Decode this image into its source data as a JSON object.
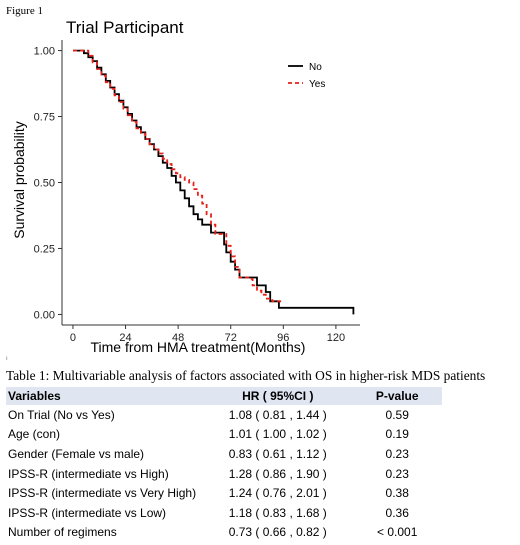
{
  "figure_label": "Figure 1",
  "chart_data": {
    "type": "line",
    "title": "Trial Participant",
    "xlabel": "Time from HMA treatment(Months)",
    "ylabel": "Survival probability",
    "xlim": [
      -5,
      131
    ],
    "ylim": [
      -0.04,
      1.04
    ],
    "x_ticks": [
      "0",
      "24",
      "48",
      "72",
      "96",
      "120"
    ],
    "x_tick_values": [
      0,
      24,
      48,
      72,
      96,
      120
    ],
    "y_ticks": [
      "0.00",
      "0.25",
      "0.50",
      "0.75",
      "1.00"
    ],
    "y_tick_values": [
      0,
      0.25,
      0.5,
      0.75,
      1.0
    ],
    "grid": false,
    "legend_position": "top-right",
    "series": [
      {
        "name": "No",
        "color": "#000000",
        "dash": "solid",
        "points": [
          [
            0,
            1.0
          ],
          [
            4,
            1.0
          ],
          [
            5,
            0.99
          ],
          [
            7,
            0.975
          ],
          [
            9,
            0.96
          ],
          [
            11,
            0.935
          ],
          [
            13,
            0.91
          ],
          [
            15,
            0.885
          ],
          [
            17,
            0.86
          ],
          [
            19,
            0.835
          ],
          [
            21,
            0.81
          ],
          [
            23,
            0.785
          ],
          [
            25,
            0.76
          ],
          [
            27,
            0.735
          ],
          [
            29,
            0.71
          ],
          [
            31,
            0.69
          ],
          [
            33,
            0.665
          ],
          [
            35,
            0.645
          ],
          [
            37,
            0.625
          ],
          [
            39,
            0.6
          ],
          [
            41,
            0.575
          ],
          [
            43,
            0.555
          ],
          [
            45,
            0.525
          ],
          [
            47,
            0.5
          ],
          [
            49,
            0.47
          ],
          [
            51,
            0.44
          ],
          [
            53,
            0.41
          ],
          [
            55,
            0.38
          ],
          [
            57,
            0.36
          ],
          [
            59,
            0.34
          ],
          [
            61,
            0.34
          ],
          [
            63,
            0.31
          ],
          [
            67,
            0.31
          ],
          [
            69,
            0.265
          ],
          [
            70,
            0.235
          ],
          [
            72,
            0.2
          ],
          [
            74,
            0.17
          ],
          [
            76,
            0.14
          ],
          [
            82,
            0.14
          ],
          [
            84,
            0.11
          ],
          [
            88,
            0.085
          ],
          [
            90,
            0.05
          ],
          [
            94,
            0.025
          ],
          [
            128,
            0.025
          ],
          [
            128,
            0.0
          ]
        ]
      },
      {
        "name": "Yes",
        "color": "#e8201a",
        "dash": "4,3",
        "points": [
          [
            0,
            1.0
          ],
          [
            5,
            1.0
          ],
          [
            7,
            0.98
          ],
          [
            9,
            0.955
          ],
          [
            11,
            0.93
          ],
          [
            13,
            0.905
          ],
          [
            15,
            0.88
          ],
          [
            17,
            0.855
          ],
          [
            19,
            0.83
          ],
          [
            21,
            0.805
          ],
          [
            23,
            0.78
          ],
          [
            25,
            0.755
          ],
          [
            27,
            0.73
          ],
          [
            29,
            0.705
          ],
          [
            31,
            0.685
          ],
          [
            33,
            0.665
          ],
          [
            35,
            0.645
          ],
          [
            37,
            0.625
          ],
          [
            39,
            0.61
          ],
          [
            41,
            0.59
          ],
          [
            43,
            0.57
          ],
          [
            45,
            0.55
          ],
          [
            47,
            0.535
          ],
          [
            49,
            0.52
          ],
          [
            51,
            0.51
          ],
          [
            53,
            0.5
          ],
          [
            55,
            0.475
          ],
          [
            57,
            0.45
          ],
          [
            59,
            0.42
          ],
          [
            61,
            0.38
          ],
          [
            63,
            0.34
          ],
          [
            65,
            0.305
          ],
          [
            68,
            0.305
          ],
          [
            70,
            0.26
          ],
          [
            72,
            0.22
          ],
          [
            74,
            0.18
          ],
          [
            76,
            0.14
          ],
          [
            80,
            0.135
          ],
          [
            82,
            0.11
          ],
          [
            84,
            0.09
          ],
          [
            86,
            0.075
          ],
          [
            88,
            0.06
          ],
          [
            91,
            0.05
          ],
          [
            95,
            0.05
          ]
        ]
      }
    ]
  },
  "table": {
    "caption": "Table 1: Multivariable analysis of factors associated with OS in higher-risk MDS patients",
    "headers": [
      "Variables",
      "HR ( 95%CI )",
      "P-value"
    ],
    "rows": [
      [
        "On Trial (No vs Yes)",
        "1.08 ( 0.81 , 1.44 )",
        "0.59"
      ],
      [
        "Age (con)",
        "1.01 ( 1.00 , 1.02 )",
        "0.19"
      ],
      [
        "Gender (Female vs male)",
        "0.83 ( 0.61 , 1.12 )",
        "0.23"
      ],
      [
        "IPSS-R (intermediate vs High)",
        "1.28 ( 0.86 , 1.90 )",
        "0.23"
      ],
      [
        "IPSS-R (intermediate vs Very High)",
        "1.24 ( 0.76 , 2.01 )",
        "0.38"
      ],
      [
        "IPSS-R (intermediate vs Low)",
        "1.18 ( 0.83 , 1.68 )",
        "0.36"
      ],
      [
        "Number of regimens",
        "0.73 ( 0.66 , 0.82 )",
        "< 0.001"
      ]
    ]
  }
}
